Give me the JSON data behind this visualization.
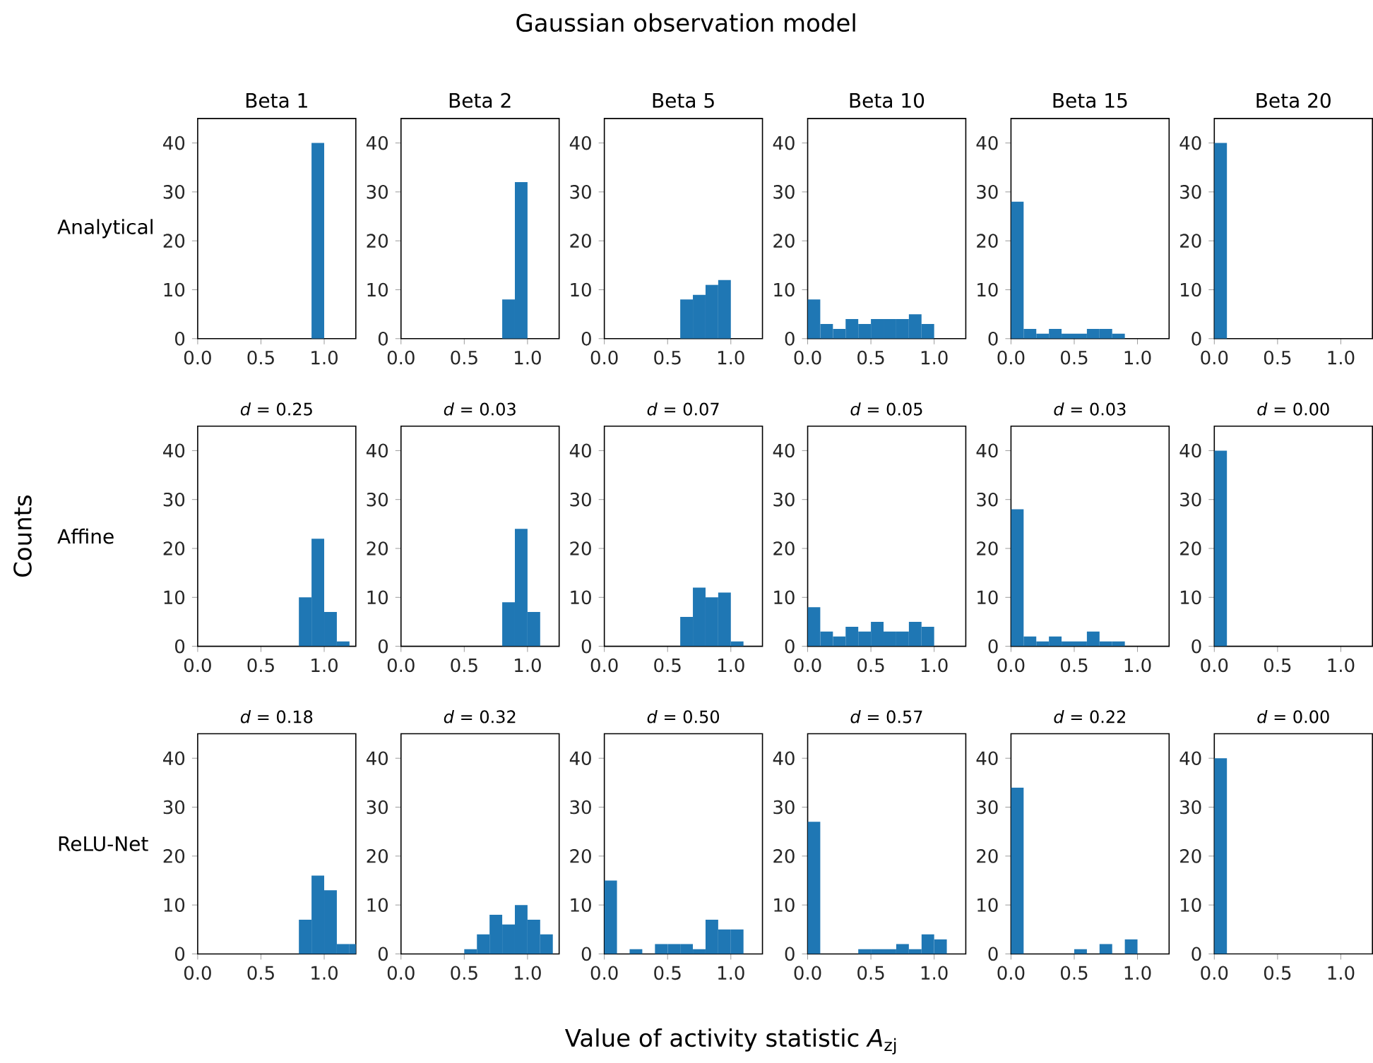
{
  "chart_data": [
    {
      "type": "histogram",
      "title": "Beta 1",
      "ylabel": "Analytical",
      "annotations": [
        "Gaussian observation model",
        "Counts",
        "Value of activity statistic *A*$_{zj}$"
      ],
      "bins": [
        0,
        0.1,
        0.2,
        0.3,
        0.4,
        0.5,
        0.6,
        0.7,
        0.8,
        0.9,
        1.0,
        1.1,
        1.2,
        1.3
      ],
      "values": [
        0,
        0,
        0,
        0,
        0,
        0,
        0,
        0,
        0,
        40,
        0,
        0,
        0
      ],
      "color": "#1f77b4",
      "xlim": [
        0,
        1.25
      ],
      "ylim": [
        0,
        45
      ],
      "xticks": [
        {
          "value": 0,
          "label": "0.0"
        },
        {
          "value": 0.5,
          "label": "0.5"
        },
        {
          "value": 1,
          "label": "1.0"
        }
      ],
      "yticks": [
        0,
        10,
        20,
        30,
        40
      ]
    },
    {
      "type": "histogram",
      "title": "Beta 2",
      "bins": [
        0,
        0.1,
        0.2,
        0.3,
        0.4,
        0.5,
        0.6,
        0.7,
        0.8,
        0.9,
        1.0,
        1.1,
        1.2,
        1.3
      ],
      "values": [
        0,
        0,
        0,
        0,
        0,
        0,
        0,
        0,
        8,
        32,
        0,
        0,
        0
      ],
      "color": "#1f77b4",
      "xlim": [
        0,
        1.25
      ],
      "ylim": [
        0,
        45
      ],
      "xticks": [
        {
          "value": 0,
          "label": "0.0"
        },
        {
          "value": 0.5,
          "label": "0.5"
        },
        {
          "value": 1,
          "label": "1.0"
        }
      ],
      "yticks": [
        0,
        10,
        20,
        30,
        40
      ]
    },
    {
      "type": "histogram",
      "title": "Beta 5",
      "bins": [
        0,
        0.1,
        0.2,
        0.3,
        0.4,
        0.5,
        0.6,
        0.7,
        0.8,
        0.9,
        1.0,
        1.1,
        1.2,
        1.3
      ],
      "values": [
        0,
        0,
        0,
        0,
        0,
        0,
        8,
        9,
        11,
        12,
        0,
        0,
        0
      ],
      "color": "#1f77b4",
      "xlim": [
        0,
        1.25
      ],
      "ylim": [
        0,
        45
      ],
      "xticks": [
        {
          "value": 0,
          "label": "0.0"
        },
        {
          "value": 0.5,
          "label": "0.5"
        },
        {
          "value": 1,
          "label": "1.0"
        }
      ],
      "yticks": [
        0,
        10,
        20,
        30,
        40
      ]
    },
    {
      "type": "histogram",
      "title": "Beta 10",
      "bins": [
        0,
        0.1,
        0.2,
        0.3,
        0.4,
        0.5,
        0.6,
        0.7,
        0.8,
        0.9,
        1.0,
        1.1,
        1.2,
        1.3
      ],
      "values": [
        8,
        3,
        2,
        4,
        3,
        4,
        4,
        4,
        5,
        3,
        0,
        0,
        0
      ],
      "color": "#1f77b4",
      "xlim": [
        0,
        1.25
      ],
      "ylim": [
        0,
        45
      ],
      "xticks": [
        {
          "value": 0,
          "label": "0.0"
        },
        {
          "value": 0.5,
          "label": "0.5"
        },
        {
          "value": 1,
          "label": "1.0"
        }
      ],
      "yticks": [
        0,
        10,
        20,
        30,
        40
      ]
    },
    {
      "type": "histogram",
      "title": "Beta 15",
      "bins": [
        0,
        0.1,
        0.2,
        0.3,
        0.4,
        0.5,
        0.6,
        0.7,
        0.8,
        0.9,
        1.0,
        1.1,
        1.2,
        1.3
      ],
      "values": [
        28,
        2,
        1,
        2,
        1,
        1,
        2,
        2,
        1,
        0,
        0,
        0,
        0
      ],
      "color": "#1f77b4",
      "xlim": [
        0,
        1.25
      ],
      "ylim": [
        0,
        45
      ],
      "xticks": [
        {
          "value": 0,
          "label": "0.0"
        },
        {
          "value": 0.5,
          "label": "0.5"
        },
        {
          "value": 1,
          "label": "1.0"
        }
      ],
      "yticks": [
        0,
        10,
        20,
        30,
        40
      ]
    },
    {
      "type": "histogram",
      "title": "Beta 20",
      "bins": [
        0,
        0.1,
        0.2,
        0.3,
        0.4,
        0.5,
        0.6,
        0.7,
        0.8,
        0.9,
        1.0,
        1.1,
        1.2,
        1.3
      ],
      "values": [
        40,
        0,
        0,
        0,
        0,
        0,
        0,
        0,
        0,
        0,
        0,
        0,
        0
      ],
      "color": "#1f77b4",
      "xlim": [
        0,
        1.25
      ],
      "ylim": [
        0,
        45
      ],
      "xticks": [
        {
          "value": 0,
          "label": "0.0"
        },
        {
          "value": 0.5,
          "label": "0.5"
        },
        {
          "value": 1,
          "label": "1.0"
        }
      ],
      "yticks": [
        0,
        10,
        20,
        30,
        40
      ]
    },
    {
      "type": "histogram",
      "title": "*d* = 0.25",
      "ylabel": "Affine",
      "bins": [
        0,
        0.1,
        0.2,
        0.3,
        0.4,
        0.5,
        0.6,
        0.7,
        0.8,
        0.9,
        1.0,
        1.1,
        1.2,
        1.3
      ],
      "values": [
        0,
        0,
        0,
        0,
        0,
        0,
        0,
        0,
        10,
        22,
        7,
        1,
        0
      ],
      "color": "#1f77b4",
      "xlim": [
        0,
        1.25
      ],
      "ylim": [
        0,
        45
      ],
      "xticks": [
        {
          "value": 0,
          "label": "0.0"
        },
        {
          "value": 0.5,
          "label": "0.5"
        },
        {
          "value": 1,
          "label": "1.0"
        }
      ],
      "yticks": [
        0,
        10,
        20,
        30,
        40
      ]
    },
    {
      "type": "histogram",
      "title": "*d* = 0.03",
      "bins": [
        0,
        0.1,
        0.2,
        0.3,
        0.4,
        0.5,
        0.6,
        0.7,
        0.8,
        0.9,
        1.0,
        1.1,
        1.2,
        1.3
      ],
      "values": [
        0,
        0,
        0,
        0,
        0,
        0,
        0,
        0,
        9,
        24,
        7,
        0,
        0
      ],
      "color": "#1f77b4",
      "xlim": [
        0,
        1.25
      ],
      "ylim": [
        0,
        45
      ],
      "xticks": [
        {
          "value": 0,
          "label": "0.0"
        },
        {
          "value": 0.5,
          "label": "0.5"
        },
        {
          "value": 1,
          "label": "1.0"
        }
      ],
      "yticks": [
        0,
        10,
        20,
        30,
        40
      ]
    },
    {
      "type": "histogram",
      "title": "*d* = 0.07",
      "bins": [
        0,
        0.1,
        0.2,
        0.3,
        0.4,
        0.5,
        0.6,
        0.7,
        0.8,
        0.9,
        1.0,
        1.1,
        1.2,
        1.3
      ],
      "values": [
        0,
        0,
        0,
        0,
        0,
        0,
        6,
        12,
        10,
        11,
        1,
        0,
        0
      ],
      "color": "#1f77b4",
      "xlim": [
        0,
        1.25
      ],
      "ylim": [
        0,
        45
      ],
      "xticks": [
        {
          "value": 0,
          "label": "0.0"
        },
        {
          "value": 0.5,
          "label": "0.5"
        },
        {
          "value": 1,
          "label": "1.0"
        }
      ],
      "yticks": [
        0,
        10,
        20,
        30,
        40
      ]
    },
    {
      "type": "histogram",
      "title": "*d* = 0.05",
      "bins": [
        0,
        0.1,
        0.2,
        0.3,
        0.4,
        0.5,
        0.6,
        0.7,
        0.8,
        0.9,
        1.0,
        1.1,
        1.2,
        1.3
      ],
      "values": [
        8,
        3,
        2,
        4,
        3,
        5,
        3,
        3,
        5,
        4,
        0,
        0,
        0
      ],
      "color": "#1f77b4",
      "xlim": [
        0,
        1.25
      ],
      "ylim": [
        0,
        45
      ],
      "xticks": [
        {
          "value": 0,
          "label": "0.0"
        },
        {
          "value": 0.5,
          "label": "0.5"
        },
        {
          "value": 1,
          "label": "1.0"
        }
      ],
      "yticks": [
        0,
        10,
        20,
        30,
        40
      ]
    },
    {
      "type": "histogram",
      "title": "*d* = 0.03",
      "bins": [
        0,
        0.1,
        0.2,
        0.3,
        0.4,
        0.5,
        0.6,
        0.7,
        0.8,
        0.9,
        1.0,
        1.1,
        1.2,
        1.3
      ],
      "values": [
        28,
        2,
        1,
        2,
        1,
        1,
        3,
        1,
        1,
        0,
        0,
        0,
        0
      ],
      "color": "#1f77b4",
      "xlim": [
        0,
        1.25
      ],
      "ylim": [
        0,
        45
      ],
      "xticks": [
        {
          "value": 0,
          "label": "0.0"
        },
        {
          "value": 0.5,
          "label": "0.5"
        },
        {
          "value": 1,
          "label": "1.0"
        }
      ],
      "yticks": [
        0,
        10,
        20,
        30,
        40
      ]
    },
    {
      "type": "histogram",
      "title": "*d* = 0.00",
      "bins": [
        0,
        0.1,
        0.2,
        0.3,
        0.4,
        0.5,
        0.6,
        0.7,
        0.8,
        0.9,
        1.0,
        1.1,
        1.2,
        1.3
      ],
      "values": [
        40,
        0,
        0,
        0,
        0,
        0,
        0,
        0,
        0,
        0,
        0,
        0,
        0
      ],
      "color": "#1f77b4",
      "xlim": [
        0,
        1.25
      ],
      "ylim": [
        0,
        45
      ],
      "xticks": [
        {
          "value": 0,
          "label": "0.0"
        },
        {
          "value": 0.5,
          "label": "0.5"
        },
        {
          "value": 1,
          "label": "1.0"
        }
      ],
      "yticks": [
        0,
        10,
        20,
        30,
        40
      ]
    },
    {
      "type": "histogram",
      "title": "*d* = 0.18",
      "ylabel": "ReLU-Net",
      "bins": [
        0,
        0.1,
        0.2,
        0.3,
        0.4,
        0.5,
        0.6,
        0.7,
        0.8,
        0.9,
        1.0,
        1.1,
        1.2,
        1.3
      ],
      "values": [
        0,
        0,
        0,
        0,
        0,
        0,
        0,
        0,
        7,
        16,
        13,
        2,
        2
      ],
      "color": "#1f77b4",
      "xlim": [
        0,
        1.25
      ],
      "ylim": [
        0,
        45
      ],
      "xticks": [
        {
          "value": 0,
          "label": "0.0"
        },
        {
          "value": 0.5,
          "label": "0.5"
        },
        {
          "value": 1,
          "label": "1.0"
        }
      ],
      "yticks": [
        0,
        10,
        20,
        30,
        40
      ]
    },
    {
      "type": "histogram",
      "title": "*d* = 0.32",
      "bins": [
        0,
        0.1,
        0.2,
        0.3,
        0.4,
        0.5,
        0.6,
        0.7,
        0.8,
        0.9,
        1.0,
        1.1,
        1.2,
        1.3
      ],
      "values": [
        0,
        0,
        0,
        0,
        0,
        1,
        4,
        8,
        6,
        10,
        7,
        4,
        0
      ],
      "color": "#1f77b4",
      "xlim": [
        0,
        1.25
      ],
      "ylim": [
        0,
        45
      ],
      "xticks": [
        {
          "value": 0,
          "label": "0.0"
        },
        {
          "value": 0.5,
          "label": "0.5"
        },
        {
          "value": 1,
          "label": "1.0"
        }
      ],
      "yticks": [
        0,
        10,
        20,
        30,
        40
      ]
    },
    {
      "type": "histogram",
      "title": "*d* = 0.50",
      "bins": [
        0,
        0.1,
        0.2,
        0.3,
        0.4,
        0.5,
        0.6,
        0.7,
        0.8,
        0.9,
        1.0,
        1.1,
        1.2,
        1.3
      ],
      "values": [
        15,
        0,
        1,
        0,
        2,
        2,
        2,
        1,
        7,
        5,
        5,
        0,
        0
      ],
      "color": "#1f77b4",
      "xlim": [
        0,
        1.25
      ],
      "ylim": [
        0,
        45
      ],
      "xticks": [
        {
          "value": 0,
          "label": "0.0"
        },
        {
          "value": 0.5,
          "label": "0.5"
        },
        {
          "value": 1,
          "label": "1.0"
        }
      ],
      "yticks": [
        0,
        10,
        20,
        30,
        40
      ]
    },
    {
      "type": "histogram",
      "title": "*d* = 0.57",
      "bins": [
        0,
        0.1,
        0.2,
        0.3,
        0.4,
        0.5,
        0.6,
        0.7,
        0.8,
        0.9,
        1.0,
        1.1,
        1.2,
        1.3
      ],
      "values": [
        27,
        0,
        0,
        0,
        1,
        1,
        1,
        2,
        1,
        4,
        3,
        0,
        0
      ],
      "color": "#1f77b4",
      "xlim": [
        0,
        1.25
      ],
      "ylim": [
        0,
        45
      ],
      "xticks": [
        {
          "value": 0,
          "label": "0.0"
        },
        {
          "value": 0.5,
          "label": "0.5"
        },
        {
          "value": 1,
          "label": "1.0"
        }
      ],
      "yticks": [
        0,
        10,
        20,
        30,
        40
      ]
    },
    {
      "type": "histogram",
      "title": "*d* = 0.22",
      "bins": [
        0,
        0.1,
        0.2,
        0.3,
        0.4,
        0.5,
        0.6,
        0.7,
        0.8,
        0.9,
        1.0,
        1.1,
        1.2,
        1.3
      ],
      "values": [
        34,
        0,
        0,
        0,
        0,
        1,
        0,
        2,
        0,
        3,
        0,
        0,
        0
      ],
      "color": "#1f77b4",
      "xlim": [
        0,
        1.25
      ],
      "ylim": [
        0,
        45
      ],
      "xticks": [
        {
          "value": 0,
          "label": "0.0"
        },
        {
          "value": 0.5,
          "label": "0.5"
        },
        {
          "value": 1,
          "label": "1.0"
        }
      ],
      "yticks": [
        0,
        10,
        20,
        30,
        40
      ]
    },
    {
      "type": "histogram",
      "title": "*d* = 0.00",
      "bins": [
        0,
        0.1,
        0.2,
        0.3,
        0.4,
        0.5,
        0.6,
        0.7,
        0.8,
        0.9,
        1.0,
        1.1,
        1.2,
        1.3
      ],
      "values": [
        40,
        0,
        0,
        0,
        0,
        0,
        0,
        0,
        0,
        0,
        0,
        0,
        0
      ],
      "color": "#1f77b4",
      "xlim": [
        0,
        1.25
      ],
      "ylim": [
        0,
        45
      ],
      "xticks": [
        {
          "value": 0,
          "label": "0.0"
        },
        {
          "value": 0.5,
          "label": "0.5"
        },
        {
          "value": 1,
          "label": "1.0"
        }
      ],
      "yticks": [
        0,
        10,
        20,
        30,
        40
      ]
    }
  ]
}
